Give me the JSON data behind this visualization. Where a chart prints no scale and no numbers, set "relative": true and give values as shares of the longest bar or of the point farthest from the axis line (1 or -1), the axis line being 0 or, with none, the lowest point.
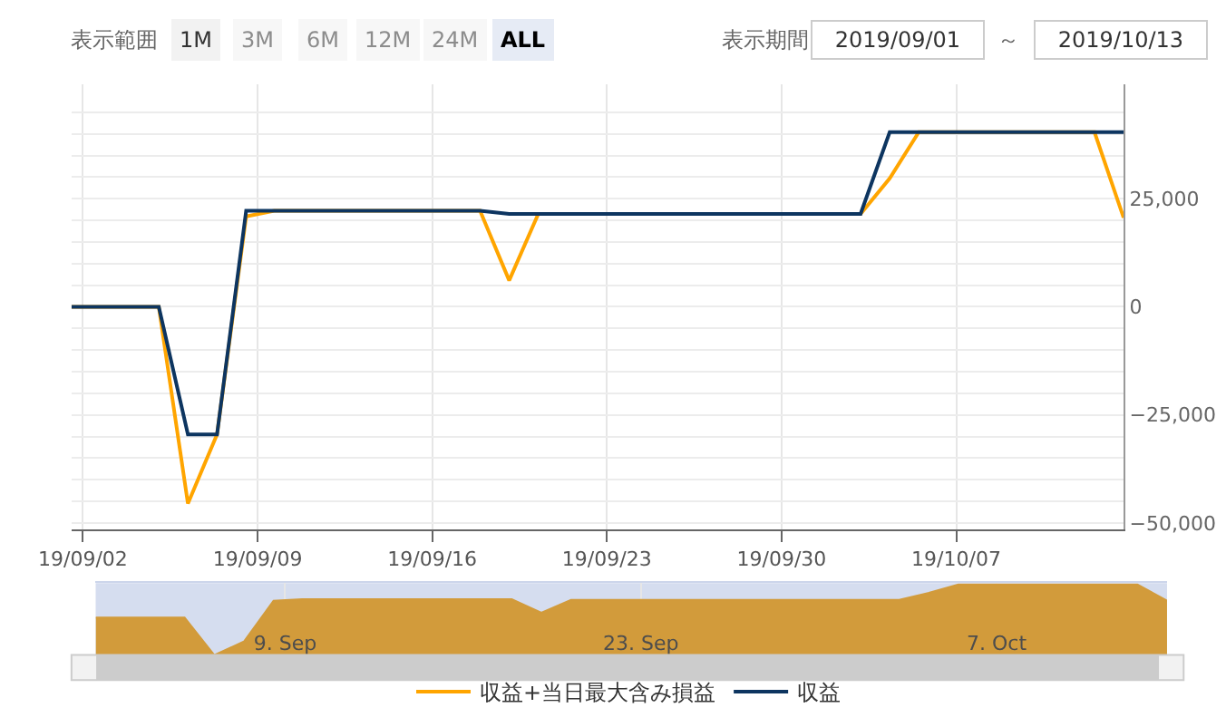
{
  "chart_data": [
    {
      "type": "line",
      "xlim": [
        "2019-09-01T13:00",
        "2019-10-13T17:00"
      ],
      "ylim": [
        -51400,
        51400
      ],
      "xticks": [
        {
          "value": "2019-09-02",
          "label": "19/09/02"
        },
        {
          "value": "2019-09-09",
          "label": "19/09/09"
        },
        {
          "value": "2019-09-16",
          "label": "19/09/16"
        },
        {
          "value": "2019-09-23",
          "label": "19/09/23"
        },
        {
          "value": "2019-09-30",
          "label": "19/09/30"
        },
        {
          "value": "2019-10-07",
          "label": "19/10/07"
        }
      ],
      "yticks": [
        {
          "value": -50000,
          "label": "−50,000"
        },
        {
          "value": -45000,
          "label": null
        },
        {
          "value": -40000,
          "label": null
        },
        {
          "value": -35000,
          "label": null
        },
        {
          "value": -30000,
          "label": null
        },
        {
          "value": -25000,
          "label": "−25,000"
        },
        {
          "value": -20000,
          "label": null
        },
        {
          "value": -15000,
          "label": null
        },
        {
          "value": -10000,
          "label": null
        },
        {
          "value": -5000,
          "label": null
        },
        {
          "value": 0,
          "label": "0"
        },
        {
          "value": 5000,
          "label": null
        },
        {
          "value": 10000,
          "label": null
        },
        {
          "value": 15000,
          "label": null
        },
        {
          "value": 20000,
          "label": null
        },
        {
          "value": 25000,
          "label": "25,000"
        },
        {
          "value": 30000,
          "label": null
        },
        {
          "value": 35000,
          "label": null
        },
        {
          "value": 40000,
          "label": null
        },
        {
          "value": 45000,
          "label": null
        }
      ],
      "series": [
        {
          "name": "収益+当日最大含み損益",
          "color": "#ffa500",
          "x": [
            "2019-09-01T13:00",
            "2019-09-05T01:00",
            "2019-09-06T05:00",
            "2019-09-07T09:00",
            "2019-09-08T13:00",
            "2019-09-09T16:00",
            "2019-09-17T22:00",
            "2019-09-19T02:00",
            "2019-09-20T06:00",
            "2019-10-03T04:00",
            "2019-10-04T08:00",
            "2019-10-05T12:00",
            "2019-10-12T13:00",
            "2019-10-13T17:00"
          ],
          "values": [
            0,
            0,
            -45500,
            -29500,
            20900,
            22200,
            22200,
            6100,
            21500,
            21500,
            29700,
            40400,
            40400,
            20600
          ]
        },
        {
          "name": "収益",
          "color": "#0d3560",
          "x": [
            "2019-09-01T13:00",
            "2019-09-05T01:00",
            "2019-09-06T05:00",
            "2019-09-07T09:00",
            "2019-09-08T13:00",
            "2019-09-17T22:00",
            "2019-09-19T02:00",
            "2019-10-03T04:00",
            "2019-10-04T08:00",
            "2019-10-13T17:00"
          ],
          "values": [
            0,
            0,
            -29500,
            -29500,
            22200,
            22200,
            21500,
            21500,
            40400,
            40400
          ]
        }
      ],
      "grid": true,
      "legend": "bottom",
      "marker": "none",
      "line_style": "solid",
      "annotations": [
        "表示範囲",
        "1M",
        "3M",
        "6M",
        "12M",
        "24M",
        "ALL",
        "表示期間",
        "2019/09/01",
        "～",
        "2019/10/13"
      ]
    },
    {
      "type": "area",
      "relative": true,
      "xlim": [
        "2019-09-01T13:00",
        "2019-10-13T17:00"
      ],
      "xticks": [
        {
          "value": "2019-09-09",
          "label": "9. Sep"
        },
        {
          "value": "2019-09-23",
          "label": "23. Sep"
        },
        {
          "value": "2019-10-07",
          "label": "7. Oct"
        }
      ],
      "tick_labels": "x",
      "grid": "x",
      "series": [
        {
          "color": "#d29b3b",
          "x": [
            "2019-09-01T13:00",
            "2019-09-05T01:00",
            "2019-09-06T05:00",
            "2019-09-07T09:00",
            "2019-09-08T13:00",
            "2019-09-09T16:00",
            "2019-09-17T22:00",
            "2019-09-19T02:00",
            "2019-09-20T06:00",
            "2019-10-03T04:00",
            "2019-10-04T08:00",
            "2019-10-05T12:00",
            "2019-10-12T13:00",
            "2019-10-13T17:00"
          ],
          "values": [
            0.53,
            0.53,
            0,
            0.19,
            0.77,
            0.79,
            0.79,
            0.6,
            0.78,
            0.78,
            0.88,
            1,
            1,
            0.77
          ]
        }
      ]
    }
  ]
}
